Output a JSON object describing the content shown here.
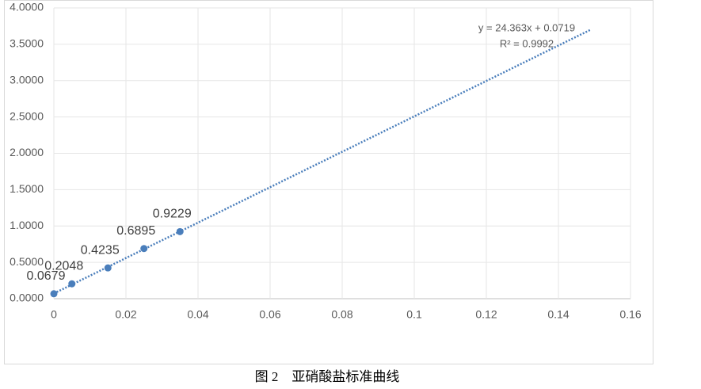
{
  "chart_data": {
    "type": "scatter",
    "x": [
      0,
      0.005,
      0.015,
      0.025,
      0.035
    ],
    "series": [
      {
        "color": "#4a7ebb",
        "values": [
          0.0679,
          0.2048,
          0.4235,
          0.6895,
          0.9229
        ]
      }
    ],
    "xlim": [
      0,
      0.16
    ],
    "xticks": [
      0,
      0.02,
      0.04,
      0.06,
      0.08,
      0.1,
      0.12,
      0.14,
      0.16
    ],
    "ylim": [
      0,
      4
    ],
    "yticks": [
      {
        "value": 0,
        "label": "0.0000"
      },
      {
        "value": 0.5,
        "label": "0.5000"
      },
      {
        "value": 1,
        "label": "1.0000"
      },
      {
        "value": 1.5,
        "label": "1.5000"
      },
      {
        "value": 2,
        "label": "2.0000"
      },
      {
        "value": 2.5,
        "label": "2.5000"
      },
      {
        "value": 3,
        "label": "3.0000"
      },
      {
        "value": 3.5,
        "label": "3.5000"
      },
      {
        "value": 4,
        "label": "4.0000"
      }
    ],
    "grid": true,
    "trendline": {
      "slope": 24.363,
      "intercept": 0.0719,
      "xrange": [
        0,
        0.149
      ],
      "equation": "y = 24.363x + 0.0719",
      "r_squared": "R² = 0.9992"
    }
  },
  "caption": "图 2　亚硝酸盐标准曲线"
}
